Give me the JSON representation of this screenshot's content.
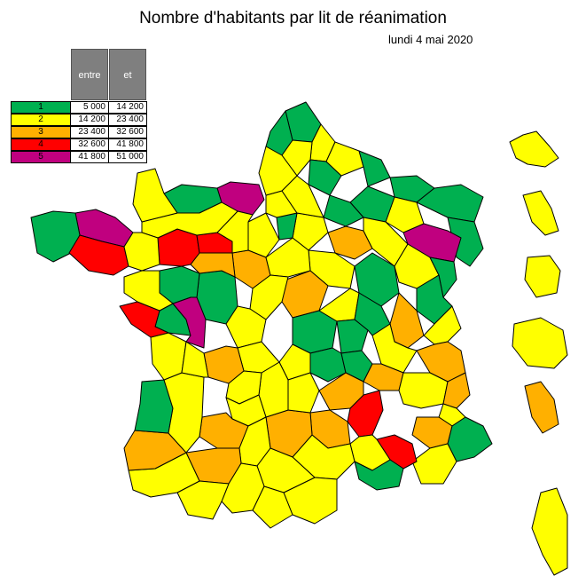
{
  "title": "Nombre d'habitants par lit de réanimation",
  "date": "lundi 4 mai 2020",
  "legend": {
    "header_from": "entre",
    "header_to": "et",
    "classes": [
      {
        "label": "1",
        "from": "5 000",
        "to": "14 200",
        "color": "#00b050"
      },
      {
        "label": "2",
        "from": "14 200",
        "to": "23 400",
        "color": "#ffff00"
      },
      {
        "label": "3",
        "from": "23 400",
        "to": "32 600",
        "color": "#ffb000"
      },
      {
        "label": "4",
        "from": "32 600",
        "to": "41 800",
        "color": "#ff0000"
      },
      {
        "label": "5",
        "from": "41 800",
        "to": "51 000",
        "color": "#c0007f"
      }
    ]
  },
  "colors": {
    "c1": "#00b050",
    "c2": "#ffff00",
    "c3": "#ffb000",
    "c4": "#ff0000",
    "c5": "#c0007f"
  }
}
